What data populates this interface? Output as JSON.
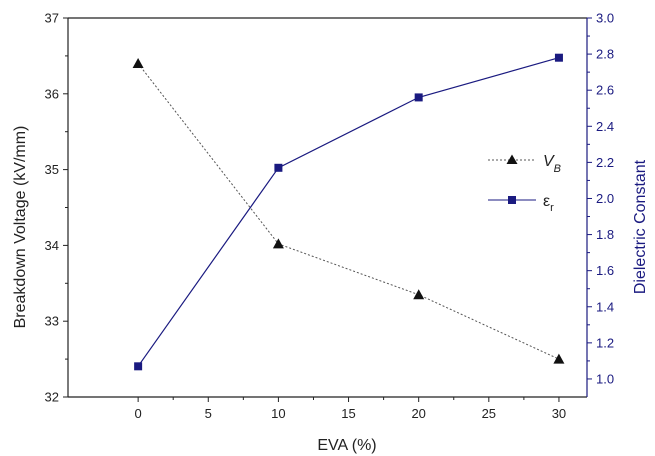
{
  "chart_data": {
    "type": "line",
    "x": [
      0,
      10,
      20,
      30
    ],
    "xlabel": "EVA (%)",
    "xlim": [
      -5,
      32
    ],
    "xticks": [
      "0",
      "5",
      "10",
      "15",
      "20",
      "25",
      "30"
    ],
    "ylabel": "Breakdown Voltage (kV/mm)",
    "ylim": [
      32,
      37
    ],
    "yticks": [
      "32",
      "33",
      "34",
      "35",
      "36",
      "37"
    ],
    "y2label": "Dielectric Constant",
    "y2lim": [
      0.9,
      3.0
    ],
    "y2ticks": [
      "1.0",
      "1.2",
      "1.4",
      "1.6",
      "1.8",
      "2.0",
      "2.2",
      "2.4",
      "2.6",
      "2.8",
      "3.0"
    ],
    "grid": false,
    "legend_position": "right",
    "series": [
      {
        "name_main": "V",
        "name_sub": "B",
        "axis": "left",
        "values": [
          36.4,
          34.02,
          33.35,
          32.5
        ],
        "color": "#555555",
        "marker": "triangle",
        "line_style": "dotted"
      },
      {
        "name_main": "ε",
        "name_sub": "r",
        "axis": "right",
        "values": [
          1.07,
          2.17,
          2.56,
          2.78
        ],
        "color": "#1a1a80",
        "marker": "square",
        "line_style": "solid"
      }
    ]
  }
}
